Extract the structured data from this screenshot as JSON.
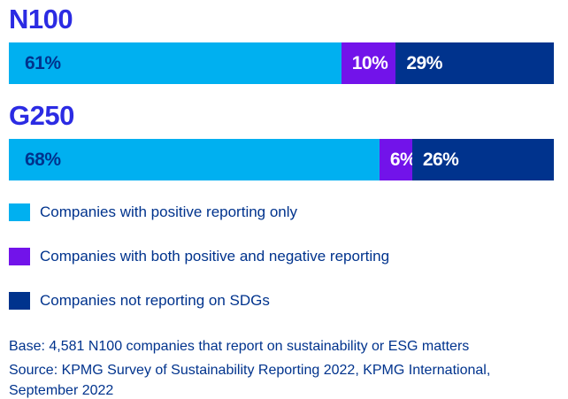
{
  "chart_data": {
    "type": "bar",
    "orientation": "horizontal-stacked",
    "title": "",
    "xlim": [
      0,
      100
    ],
    "grid": false,
    "legend_position": "bottom-left",
    "groups": [
      {
        "label": "N100",
        "values": [
          61,
          10,
          29
        ],
        "value_labels": [
          "61%",
          "10%",
          "29%"
        ]
      },
      {
        "label": "G250",
        "values": [
          68,
          6,
          26
        ],
        "value_labels": [
          "68%",
          "6%",
          "26%"
        ]
      }
    ],
    "series": [
      {
        "name": "Companies with positive reporting only",
        "color": "#00b0f0"
      },
      {
        "name": "Companies with both positive and negative reporting",
        "color": "#7213ea"
      },
      {
        "name": "Companies not reporting on SDGs",
        "color": "#00338d"
      }
    ]
  },
  "colors": {
    "group_title": "#2b2be3",
    "text": "#00338d",
    "background": "#ffffff",
    "label_on_light_segment": "#00338d",
    "label_on_dark_segment": "#ffffff"
  },
  "footer": {
    "base": "Base: 4,581 N100 companies that report on sustainability or ESG matters",
    "source": "Source: KPMG Survey of Sustainability Reporting 2022, KPMG International, September 2022"
  }
}
